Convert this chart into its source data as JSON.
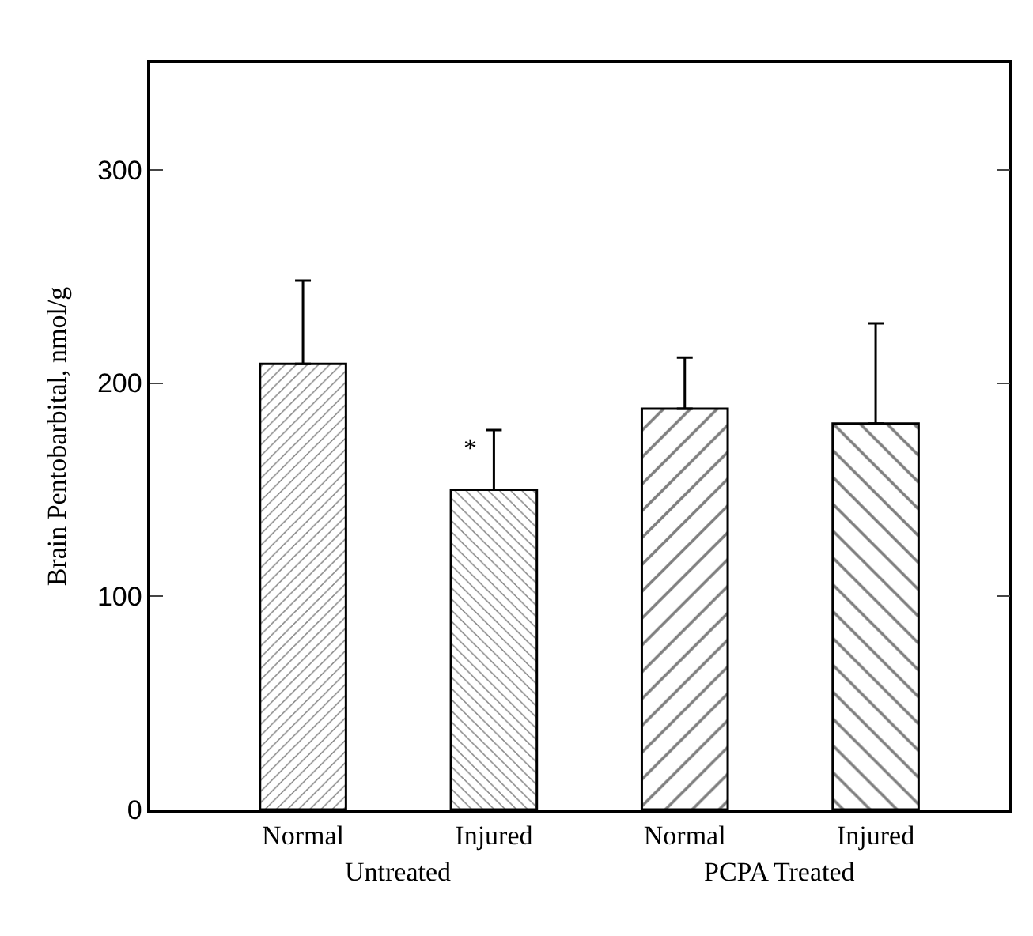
{
  "chart_data": {
    "type": "bar",
    "categories": [
      "Normal",
      "Injured",
      "Normal",
      "Injured"
    ],
    "values": [
      209,
      150,
      188,
      181
    ],
    "errors": [
      [
        209,
        248
      ],
      [
        150,
        178
      ],
      [
        188,
        212
      ],
      [
        181,
        228
      ]
    ],
    "colors": [
      "#000000",
      "#000000",
      "#000000",
      "#000000"
    ],
    "ylabel": "Brain Pentobarbital, nmol/g",
    "ylim": [
      0,
      350
    ],
    "yticks": [
      0,
      100,
      200,
      300
    ],
    "legend": false,
    "annotations": [
      "*",
      "Untreated",
      "PCPA Treated"
    ]
  }
}
